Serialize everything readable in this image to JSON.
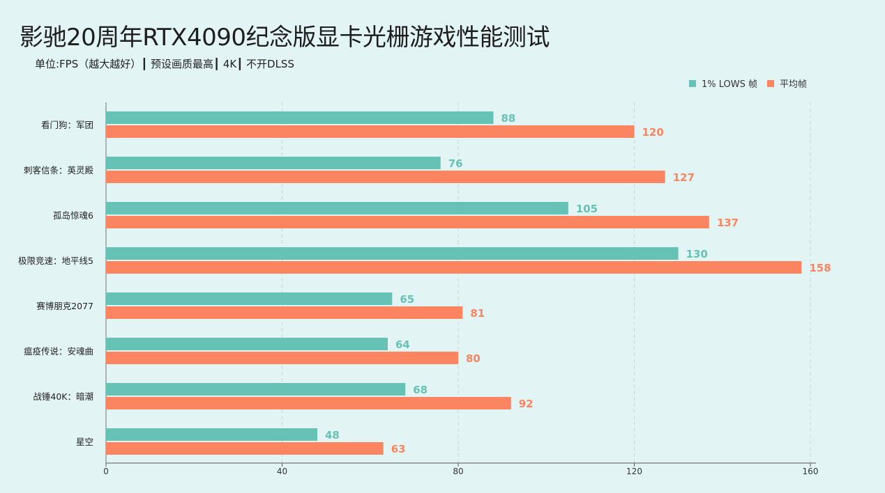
{
  "chart_data": {
    "type": "bar",
    "orientation": "horizontal",
    "title": "影驰20周年RTX4090纪念版显卡光栅游戏性能测试",
    "subtitle": "单位:FPS（越大越好）┃ 预设画质最高┃ 4K┃ 不开DLSS",
    "categories": [
      "看门狗：军团",
      "刺客信条：英灵殿",
      "孤岛惊魂6",
      "极限竞速：地平线5",
      "赛博朋克2077",
      "瘟疫传说：安魂曲",
      "战锤40K：暗潮",
      "星空"
    ],
    "series": [
      {
        "name": "1% LOWS 帧",
        "color": "#66c2b5",
        "values": [
          88,
          76,
          105,
          130,
          65,
          64,
          68,
          48
        ]
      },
      {
        "name": "平均帧",
        "color": "#fb8560",
        "values": [
          120,
          127,
          137,
          158,
          81,
          80,
          92,
          63
        ]
      }
    ],
    "xlim": [
      0,
      160
    ],
    "xticks": [
      0,
      40,
      80,
      120,
      160
    ],
    "grid": "vertical dashed",
    "legend_position": "top-right"
  }
}
